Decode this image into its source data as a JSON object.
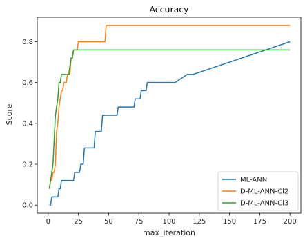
{
  "chart_data": {
    "type": "line",
    "title": "Accuracy",
    "xlabel": "max_iteration",
    "ylabel": "Score",
    "xlim": [
      -9,
      209
    ],
    "ylim": [
      -0.04,
      0.92
    ],
    "xticks": [
      0,
      25,
      50,
      75,
      100,
      125,
      150,
      175,
      200
    ],
    "yticks": [
      0.0,
      0.2,
      0.4,
      0.6,
      0.8
    ],
    "ytick_labels": [
      "0.0",
      "0.2",
      "0.4",
      "0.6",
      "0.8"
    ],
    "grid": false,
    "legend_position": "bottom-right",
    "series": [
      {
        "name": "ML-ANN",
        "color": "#1f77b4",
        "points": [
          [
            1,
            0.0
          ],
          [
            2,
            0.0
          ],
          [
            3,
            0.04
          ],
          [
            8,
            0.04
          ],
          [
            9,
            0.08
          ],
          [
            10,
            0.08
          ],
          [
            11,
            0.12
          ],
          [
            21,
            0.12
          ],
          [
            22,
            0.16
          ],
          [
            26,
            0.16
          ],
          [
            27,
            0.2
          ],
          [
            29,
            0.2
          ],
          [
            30,
            0.28
          ],
          [
            38,
            0.28
          ],
          [
            39,
            0.36
          ],
          [
            44,
            0.36
          ],
          [
            45,
            0.44
          ],
          [
            57,
            0.44
          ],
          [
            58,
            0.48
          ],
          [
            71,
            0.48
          ],
          [
            72,
            0.52
          ],
          [
            76,
            0.52
          ],
          [
            77,
            0.56
          ],
          [
            81,
            0.56
          ],
          [
            82,
            0.6
          ],
          [
            105,
            0.6
          ],
          [
            115,
            0.64
          ],
          [
            120,
            0.64
          ],
          [
            200,
            0.8
          ]
        ]
      },
      {
        "name": "D-ML-ANN-Cl2",
        "color": "#ff7f0e",
        "points": [
          [
            1,
            0.08
          ],
          [
            2,
            0.12
          ],
          [
            3,
            0.12
          ],
          [
            4,
            0.16
          ],
          [
            5,
            0.16
          ],
          [
            6,
            0.2
          ],
          [
            7,
            0.36
          ],
          [
            8,
            0.4
          ],
          [
            9,
            0.48
          ],
          [
            10,
            0.52
          ],
          [
            11,
            0.56
          ],
          [
            12,
            0.56
          ],
          [
            13,
            0.6
          ],
          [
            15,
            0.6
          ],
          [
            16,
            0.64
          ],
          [
            18,
            0.64
          ],
          [
            19,
            0.72
          ],
          [
            20,
            0.72
          ],
          [
            21,
            0.76
          ],
          [
            24,
            0.76
          ],
          [
            25,
            0.8
          ],
          [
            47,
            0.8
          ],
          [
            48,
            0.88
          ],
          [
            200,
            0.88
          ]
        ]
      },
      {
        "name": "D-ML-ANN-Cl3",
        "color": "#2ca02c",
        "points": [
          [
            1,
            0.08
          ],
          [
            2,
            0.12
          ],
          [
            3,
            0.16
          ],
          [
            4,
            0.2
          ],
          [
            5,
            0.32
          ],
          [
            6,
            0.44
          ],
          [
            7,
            0.48
          ],
          [
            8,
            0.52
          ],
          [
            9,
            0.6
          ],
          [
            10,
            0.6
          ],
          [
            11,
            0.64
          ],
          [
            17,
            0.64
          ],
          [
            18,
            0.68
          ],
          [
            19,
            0.72
          ],
          [
            20,
            0.72
          ],
          [
            21,
            0.76
          ],
          [
            200,
            0.76
          ]
        ]
      }
    ]
  }
}
